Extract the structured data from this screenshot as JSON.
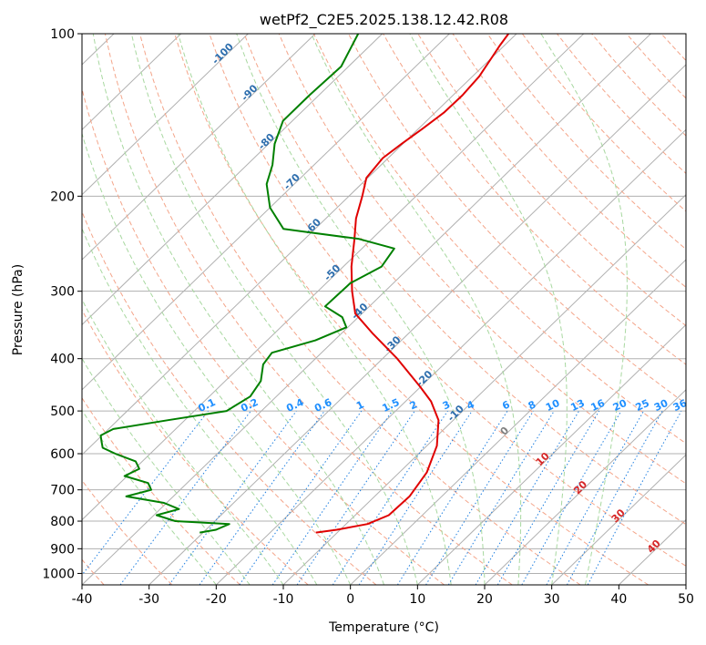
{
  "chart_data": {
    "type": "line",
    "title": "wetPf2_C2E5.2025.138.12.42.R08",
    "xlabel": "Temperature (°C)",
    "ylabel": "Pressure (hPa)",
    "xlim": [
      -40,
      50
    ],
    "ylim": [
      1050,
      100
    ],
    "y_scale": "log",
    "x_ticks": [
      -40,
      -30,
      -20,
      -10,
      0,
      10,
      20,
      30,
      40,
      50
    ],
    "y_ticks": [
      100,
      200,
      300,
      400,
      500,
      600,
      700,
      800,
      900,
      1000
    ],
    "skew": "skew-T",
    "grid": true,
    "series": [
      {
        "name": "",
        "color": "#e00000",
        "kind": "temperature",
        "pressure": [
          840,
          830,
          810,
          780,
          720,
          650,
          580,
          520,
          480,
          450,
          400,
          360,
          330,
          300,
          270,
          240,
          220,
          200,
          185,
          170,
          160,
          150,
          140,
          130,
          120,
          110,
          105,
          100
        ],
        "temperature": [
          -13.2,
          -10.5,
          -6.8,
          -5.0,
          -4.8,
          -5.9,
          -8.5,
          -12.2,
          -16.2,
          -20.2,
          -27.8,
          -35.2,
          -41.0,
          -44.9,
          -48.8,
          -52.6,
          -55.5,
          -58.0,
          -60.2,
          -60.8,
          -60.2,
          -59.4,
          -58.7,
          -58.6,
          -59.0,
          -60.1,
          -60.7,
          -61.2
        ]
      },
      {
        "name": "",
        "color": "#008000",
        "kind": "dewpoint",
        "pressure": [
          840,
          830,
          810,
          800,
          780,
          760,
          740,
          720,
          700,
          680,
          660,
          640,
          620,
          600,
          585,
          570,
          555,
          540,
          520,
          500,
          470,
          440,
          410,
          390,
          370,
          350,
          335,
          320,
          305,
          290,
          270,
          250,
          240,
          230,
          210,
          190,
          175,
          160,
          145,
          130,
          115,
          100
        ],
        "temperature": [
          -30.5,
          -28.5,
          -27.4,
          -35.9,
          -39.6,
          -37.2,
          -40.4,
          -47.0,
          -44.3,
          -45.8,
          -50.4,
          -49.3,
          -51.0,
          -55.2,
          -58.0,
          -59.1,
          -60.2,
          -59.3,
          -52.5,
          -45.2,
          -43.9,
          -44.7,
          -46.9,
          -47.4,
          -42.8,
          -40.2,
          -42.4,
          -46.6,
          -46.5,
          -46.4,
          -44.3,
          -45.2,
          -51.9,
          -64.7,
          -70.0,
          -74.1,
          -76.2,
          -79.1,
          -81.4,
          -81.4,
          -81.1,
          -83.6
        ]
      }
    ],
    "dry_adiabats_theta_C": [
      -40,
      -30,
      -20,
      -10,
      0,
      10,
      20,
      30,
      40,
      50,
      60,
      70,
      80,
      90,
      100,
      110,
      120,
      130,
      140,
      150,
      160,
      170,
      180
    ],
    "moist_adiabat_start_T_C": [
      -20,
      -15,
      -10,
      -5,
      0,
      5,
      10,
      15,
      20,
      25,
      30,
      35
    ],
    "mixing_ratio_labels": [
      "0.1",
      "0.2",
      "0.4",
      "0.6",
      "1",
      "1.5",
      "2",
      "3",
      "4",
      "6",
      "8",
      "10",
      "13",
      "16",
      "20",
      "25",
      "30",
      "36"
    ],
    "mixing_ratio_values": [
      0.1,
      0.2,
      0.4,
      0.6,
      1,
      1.5,
      2,
      3,
      4,
      6,
      8,
      10,
      13,
      16,
      20,
      25,
      30,
      36
    ],
    "isotherm_labels_blue": [
      "-100",
      "-90",
      "-80",
      "-70",
      "-60",
      "-50",
      "-40",
      "-30",
      "-20",
      "-10"
    ],
    "isotherm_labels_gray": [
      "0"
    ],
    "isotherm_labels_red": [
      "10",
      "20",
      "30",
      "40"
    ],
    "colors": {
      "temperature": "#e00000",
      "dewpoint": "#008000",
      "dry_adiabat": "#f4a58a",
      "moist_adiabat": "#a8d8a0",
      "mixing_ratio": "#1f7fe0",
      "isotherm": "#b0b0b0",
      "isobar": "#b0b0b0",
      "label_blue": "#2f6fae",
      "label_red": "#d62728",
      "mixing_label": "#1f8fff"
    }
  }
}
